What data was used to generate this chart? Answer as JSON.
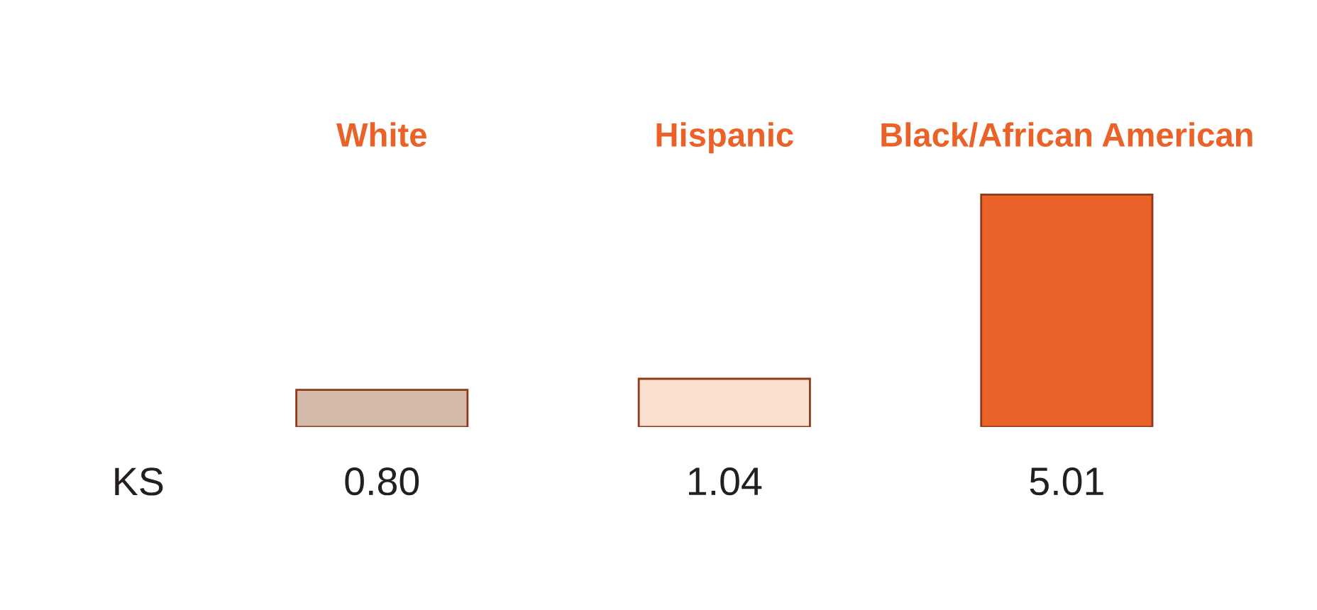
{
  "chart_data": {
    "type": "bar",
    "categories": [
      "White",
      "Hispanic",
      "Black/African American"
    ],
    "values": [
      0.8,
      1.04,
      5.01
    ],
    "colors": [
      "#d4baa8",
      "#fbe0d0",
      "#eb6228"
    ],
    "value_labels": [
      "0.80",
      "1.04",
      "5.01"
    ],
    "tick_labels": "x",
    "grid": false,
    "annotations": [
      "KS"
    ]
  }
}
